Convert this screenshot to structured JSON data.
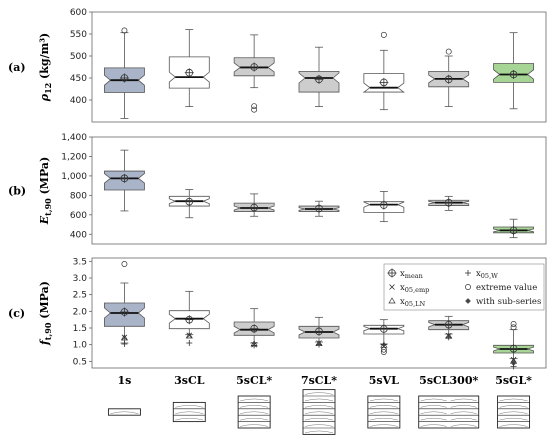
{
  "colors": {
    "blue": "#a9b4c9",
    "white": "#ffffff",
    "gray": "#cdcdcd",
    "green": "#a6d596",
    "edge": "#555555"
  },
  "legend": {
    "items": [
      {
        "symbol": "mean",
        "label": "x",
        "sub": "mean"
      },
      {
        "symbol": "plus",
        "label": "x",
        "sub": "05,W"
      },
      {
        "symbol": "cross",
        "label": "x",
        "sub": "05,emp"
      },
      {
        "symbol": "circle",
        "label": "extreme value",
        "sub": ""
      },
      {
        "symbol": "triangle",
        "label": "x",
        "sub": "05,LN"
      },
      {
        "symbol": "star",
        "label": "with sub-series",
        "sub": ""
      }
    ]
  },
  "chart_data": [
    {
      "type": "box",
      "panel_letter": "(a)",
      "ylabel_main": "ρ",
      "ylabel_sub": "12",
      "ylabel_unit": " (kg/m³)",
      "ylim": [
        350,
        600
      ],
      "yticks": [
        400,
        450,
        500,
        550,
        600
      ],
      "ytick_labels": [
        "400",
        "450",
        "500",
        "550",
        "600"
      ],
      "boxes": [
        {
          "cat": "1s",
          "fill": "blue",
          "whisker_low": 358,
          "q1": 417,
          "median": 445,
          "q3": 473,
          "whisker_high": 553,
          "mean": 450,
          "outliers": [
            558
          ]
        },
        {
          "cat": "3sCL",
          "fill": "white",
          "whisker_low": 385,
          "q1": 427,
          "median": 452,
          "q3": 498,
          "whisker_high": 560,
          "mean": 462,
          "outliers": []
        },
        {
          "cat": "5sCL*",
          "fill": "gray",
          "whisker_low": 428,
          "q1": 455,
          "median": 474,
          "q3": 496,
          "whisker_high": 548,
          "mean": 475,
          "outliers": [
            386,
            378
          ]
        },
        {
          "cat": "7sCL*",
          "fill": "gray",
          "whisker_low": 385,
          "q1": 418,
          "median": 450,
          "q3": 465,
          "whisker_high": 520,
          "mean": 447,
          "outliers": []
        },
        {
          "cat": "5sVL",
          "fill": "white",
          "whisker_low": 378,
          "q1": 418,
          "median": 428,
          "q3": 460,
          "whisker_high": 513,
          "mean": 440,
          "outliers": [
            548
          ]
        },
        {
          "cat": "5sCL300*",
          "fill": "gray",
          "whisker_low": 385,
          "q1": 430,
          "median": 448,
          "q3": 465,
          "whisker_high": 500,
          "mean": 447,
          "outliers": [
            510
          ]
        },
        {
          "cat": "5sGL*",
          "fill": "green",
          "whisker_low": 380,
          "q1": 440,
          "median": 458,
          "q3": 483,
          "whisker_high": 553,
          "mean": 458,
          "outliers": []
        }
      ]
    },
    {
      "type": "box",
      "panel_letter": "(b)",
      "ylabel_main": "E",
      "ylabel_sub": "t,90",
      "ylabel_unit": " (MPa)",
      "ylim": [
        300,
        1400
      ],
      "yticks": [
        400,
        600,
        800,
        1000,
        1200,
        1400
      ],
      "ytick_labels": [
        "400",
        "600",
        "800",
        "1,000",
        "1,200",
        "1,400"
      ],
      "boxes": [
        {
          "cat": "1s",
          "fill": "blue",
          "whisker_low": 640,
          "q1": 855,
          "median": 975,
          "q3": 1050,
          "whisker_high": 1265,
          "mean": 975,
          "outliers": []
        },
        {
          "cat": "3sCL",
          "fill": "white",
          "whisker_low": 570,
          "q1": 690,
          "median": 740,
          "q3": 790,
          "whisker_high": 860,
          "mean": 735,
          "outliers": []
        },
        {
          "cat": "5sCL*",
          "fill": "gray",
          "whisker_low": 585,
          "q1": 635,
          "median": 670,
          "q3": 720,
          "whisker_high": 815,
          "mean": 675,
          "outliers": []
        },
        {
          "cat": "7sCL*",
          "fill": "gray",
          "whisker_low": 585,
          "q1": 635,
          "median": 660,
          "q3": 690,
          "whisker_high": 740,
          "mean": 665,
          "outliers": []
        },
        {
          "cat": "5sVL",
          "fill": "white",
          "whisker_low": 530,
          "q1": 625,
          "median": 705,
          "q3": 735,
          "whisker_high": 840,
          "mean": 700,
          "outliers": []
        },
        {
          "cat": "5sCL300*",
          "fill": "gray",
          "whisker_low": 645,
          "q1": 695,
          "median": 725,
          "q3": 750,
          "whisker_high": 790,
          "mean": 725,
          "outliers": []
        },
        {
          "cat": "5sGL*",
          "fill": "green",
          "whisker_low": 365,
          "q1": 415,
          "median": 440,
          "q3": 475,
          "whisker_high": 555,
          "mean": 440,
          "outliers": []
        }
      ]
    },
    {
      "type": "box",
      "panel_letter": "(c)",
      "ylabel_main": "f",
      "ylabel_sub": "t,90",
      "ylabel_unit": " (MPa)",
      "ylim": [
        0.3,
        3.6
      ],
      "yticks": [
        0.5,
        1.0,
        1.5,
        2.0,
        2.5,
        3.0,
        3.5
      ],
      "ytick_labels": [
        "0.5",
        "1.0",
        "1.5",
        "2.0",
        "2.5",
        "3.0",
        "3.5"
      ],
      "boxes": [
        {
          "cat": "1s",
          "fill": "blue",
          "whisker_low": 1.05,
          "q1": 1.55,
          "median": 1.95,
          "q3": 2.25,
          "whisker_high": 2.85,
          "mean": 1.98,
          "outliers": [
            3.42
          ],
          "markers": [
            {
              "symbol": "cross",
              "y": 1.22
            },
            {
              "symbol": "triangle",
              "y": 1.2
            },
            {
              "symbol": "plus",
              "y": 1.02
            }
          ]
        },
        {
          "cat": "3sCL",
          "fill": "white",
          "whisker_low": 1.3,
          "q1": 1.48,
          "median": 1.78,
          "q3": 2.02,
          "whisker_high": 2.6,
          "mean": 1.75,
          "outliers": [],
          "markers": [
            {
              "symbol": "cross",
              "y": 1.28
            },
            {
              "symbol": "triangle",
              "y": 1.26
            },
            {
              "symbol": "plus",
              "y": 1.05
            }
          ]
        },
        {
          "cat": "5sCL*",
          "fill": "gray",
          "whisker_low": 1.05,
          "q1": 1.28,
          "median": 1.45,
          "q3": 1.68,
          "whisker_high": 2.08,
          "mean": 1.48,
          "outliers": [],
          "markers": [
            {
              "symbol": "cross",
              "y": 1.0
            },
            {
              "symbol": "triangle",
              "y": 1.02
            },
            {
              "symbol": "plus",
              "y": 0.98
            }
          ]
        },
        {
          "cat": "7sCL*",
          "fill": "gray",
          "whisker_low": 1.08,
          "q1": 1.2,
          "median": 1.38,
          "q3": 1.55,
          "whisker_high": 1.82,
          "mean": 1.4,
          "outliers": [],
          "markers": [
            {
              "symbol": "cross",
              "y": 1.05
            },
            {
              "symbol": "triangle",
              "y": 1.03
            },
            {
              "symbol": "plus",
              "y": 1.0
            }
          ]
        },
        {
          "cat": "5sVL",
          "fill": "white",
          "whisker_low": 1.02,
          "q1": 1.32,
          "median": 1.48,
          "q3": 1.58,
          "whisker_high": 1.75,
          "mean": 1.47,
          "outliers": [
            0.78,
            0.85
          ],
          "markers": [
            {
              "symbol": "cross",
              "y": 0.95
            },
            {
              "symbol": "triangle",
              "y": 0.98
            },
            {
              "symbol": "plus",
              "y": 1.0
            }
          ]
        },
        {
          "cat": "5sCL300*",
          "fill": "gray",
          "whisker_low": 1.32,
          "q1": 1.45,
          "median": 1.6,
          "q3": 1.72,
          "whisker_high": 1.85,
          "mean": 1.6,
          "outliers": [],
          "markers": [
            {
              "symbol": "cross",
              "y": 1.27
            },
            {
              "symbol": "triangle",
              "y": 1.25
            },
            {
              "symbol": "plus",
              "y": 1.22
            }
          ]
        },
        {
          "cat": "5sGL*",
          "fill": "green",
          "whisker_low": 0.58,
          "q1": 0.75,
          "median": 0.87,
          "q3": 0.98,
          "whisker_high": 1.45,
          "mean": 0.88,
          "outliers": [
            1.62,
            1.52
          ],
          "markers": [
            {
              "symbol": "cross",
              "y": 0.55
            },
            {
              "symbol": "triangle",
              "y": 0.5
            },
            {
              "symbol": "star",
              "y": 0.45
            },
            {
              "symbol": "plus",
              "y": 0.35
            }
          ]
        }
      ]
    }
  ],
  "categories": [
    "1s",
    "3sCL",
    "5sCL*",
    "7sCL*",
    "5sVL",
    "5sCL300*",
    "5sGL*"
  ],
  "cross_sections": [
    {
      "cat": "1s",
      "layers": 1
    },
    {
      "cat": "3sCL",
      "layers": 3
    },
    {
      "cat": "5sCL*",
      "layers": 5
    },
    {
      "cat": "7sCL*",
      "layers": 7
    },
    {
      "cat": "5sVL",
      "layers": 5
    },
    {
      "cat": "5sCL300*",
      "layers": 5
    },
    {
      "cat": "5sGL*",
      "layers": 5
    }
  ]
}
